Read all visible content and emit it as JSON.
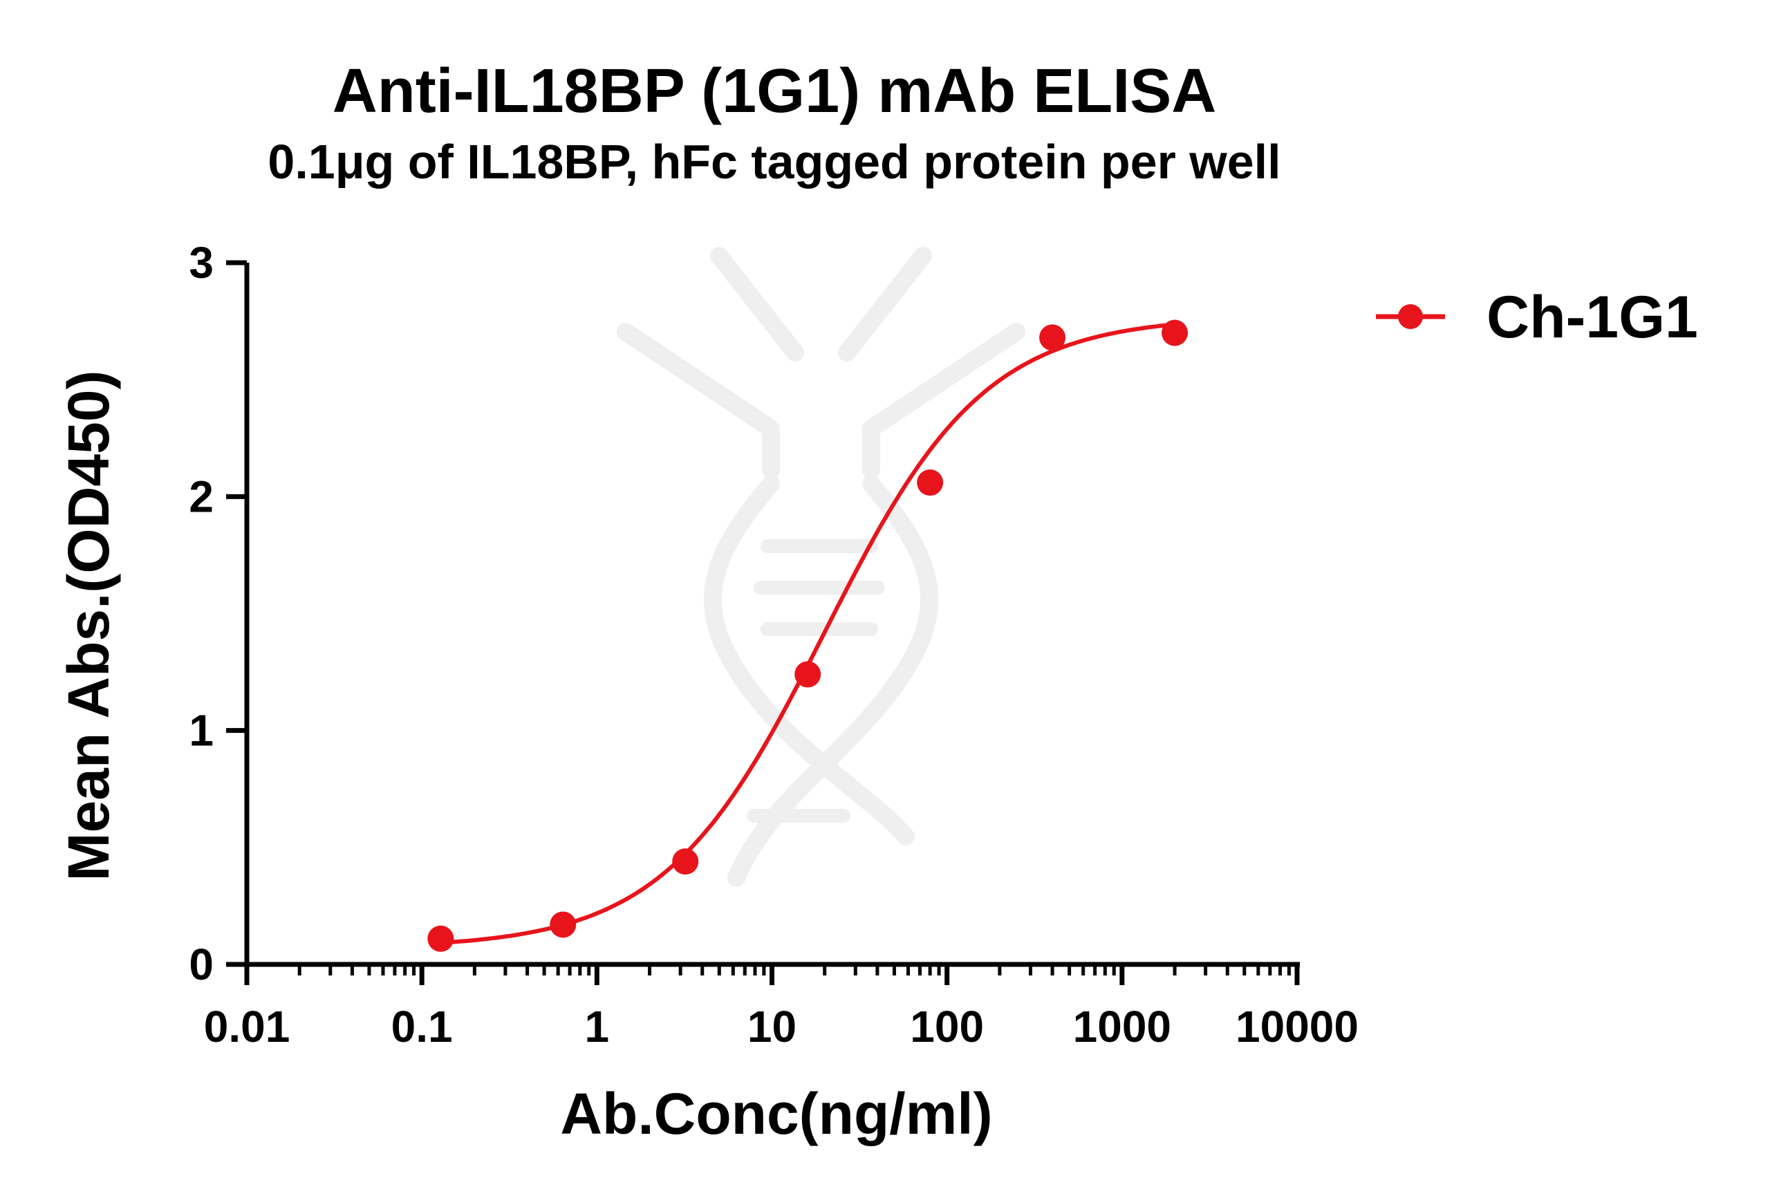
{
  "chart_data": {
    "type": "line",
    "title": "Anti-IL18BP (1G1) mAb ELISA",
    "subtitle": "0.1μg of IL18BP, hFc tagged protein per well",
    "xlabel": "Ab.Conc(ng/ml)",
    "ylabel": "Mean Abs.(OD450)",
    "x_scale": "log",
    "xlim": [
      0.01,
      10000
    ],
    "ylim": [
      0,
      3
    ],
    "x_ticks": [
      0.01,
      0.1,
      1,
      10,
      100,
      1000,
      10000
    ],
    "x_tick_labels": [
      "0.01",
      "0.1",
      "1",
      "10",
      "100",
      "1000",
      "10000"
    ],
    "y_ticks": [
      0,
      1,
      2,
      3
    ],
    "y_tick_labels": [
      "0",
      "1",
      "2",
      "3"
    ],
    "grid": false,
    "legend_position": "top-right",
    "series": [
      {
        "name": "Ch-1G1",
        "color": "#e8141b",
        "x": [
          0.128,
          0.64,
          3.2,
          16,
          80,
          400,
          2000
        ],
        "y": [
          0.11,
          0.17,
          0.44,
          1.24,
          2.06,
          2.68,
          2.7
        ],
        "fit": "sigmoidal",
        "fit_params": {
          "bottom": 0.07,
          "top": 2.77,
          "ec50": 20,
          "hill": 0.95
        }
      }
    ]
  }
}
